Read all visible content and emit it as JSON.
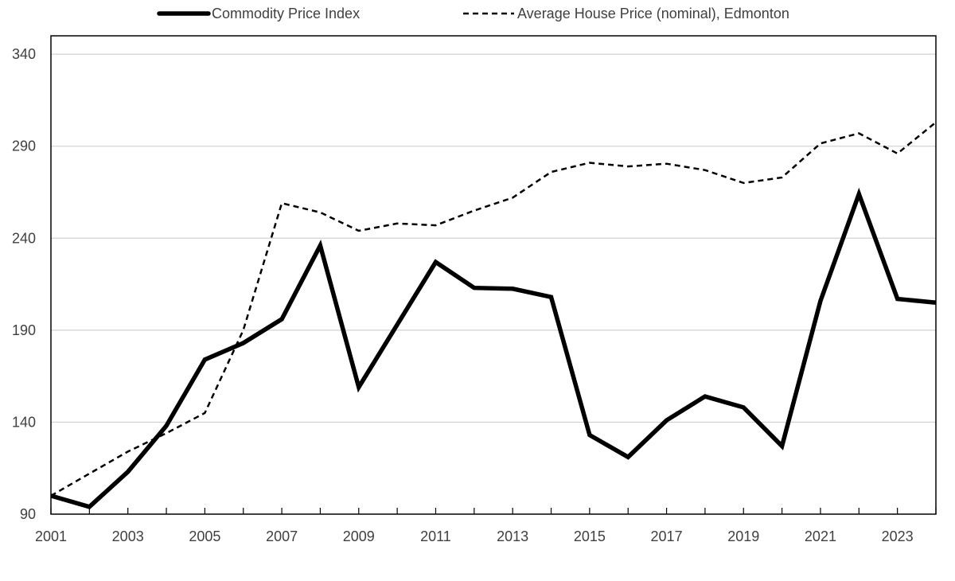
{
  "chart_data": {
    "type": "line",
    "title": "",
    "xlabel": "",
    "ylabel": "",
    "x": [
      2001,
      2002,
      2003,
      2004,
      2005,
      2006,
      2007,
      2008,
      2009,
      2010,
      2011,
      2012,
      2013,
      2014,
      2015,
      2016,
      2017,
      2018,
      2019,
      2020,
      2021,
      2022,
      2023,
      2024
    ],
    "xlim": [
      2001,
      2024
    ],
    "ylim": [
      90,
      350
    ],
    "yticks": [
      90,
      140,
      190,
      240,
      290,
      340
    ],
    "yticklabels": [
      "90",
      "140",
      "190",
      "240",
      "290",
      "340"
    ],
    "xticks": [
      2001,
      2003,
      2005,
      2007,
      2009,
      2011,
      2013,
      2015,
      2017,
      2019,
      2021,
      2023
    ],
    "xticklabels": [
      "2001",
      "2003",
      "2005",
      "2007",
      "2009",
      "2011",
      "2013",
      "2015",
      "2017",
      "2019",
      "2021",
      "2023"
    ],
    "grid": "horizontal",
    "legend_position": "top",
    "series": [
      {
        "name": "Commodity Price Index",
        "style": "solid-thick",
        "color": "#000000",
        "values": [
          100,
          94,
          113,
          138,
          174,
          183,
          196,
          236,
          159,
          193,
          227,
          213,
          212.5,
          208,
          133,
          121,
          141,
          154,
          148,
          127,
          206,
          264,
          207,
          205
        ]
      },
      {
        "name": "Average House Price (nominal), Edmonton",
        "style": "dashed",
        "color": "#000000",
        "values": [
          100,
          112,
          124,
          134,
          145,
          190,
          259,
          254,
          244,
          248,
          247,
          255,
          262,
          276,
          281,
          279,
          280.5,
          277,
          270,
          273,
          291.5,
          297,
          286,
          303
        ]
      }
    ]
  }
}
